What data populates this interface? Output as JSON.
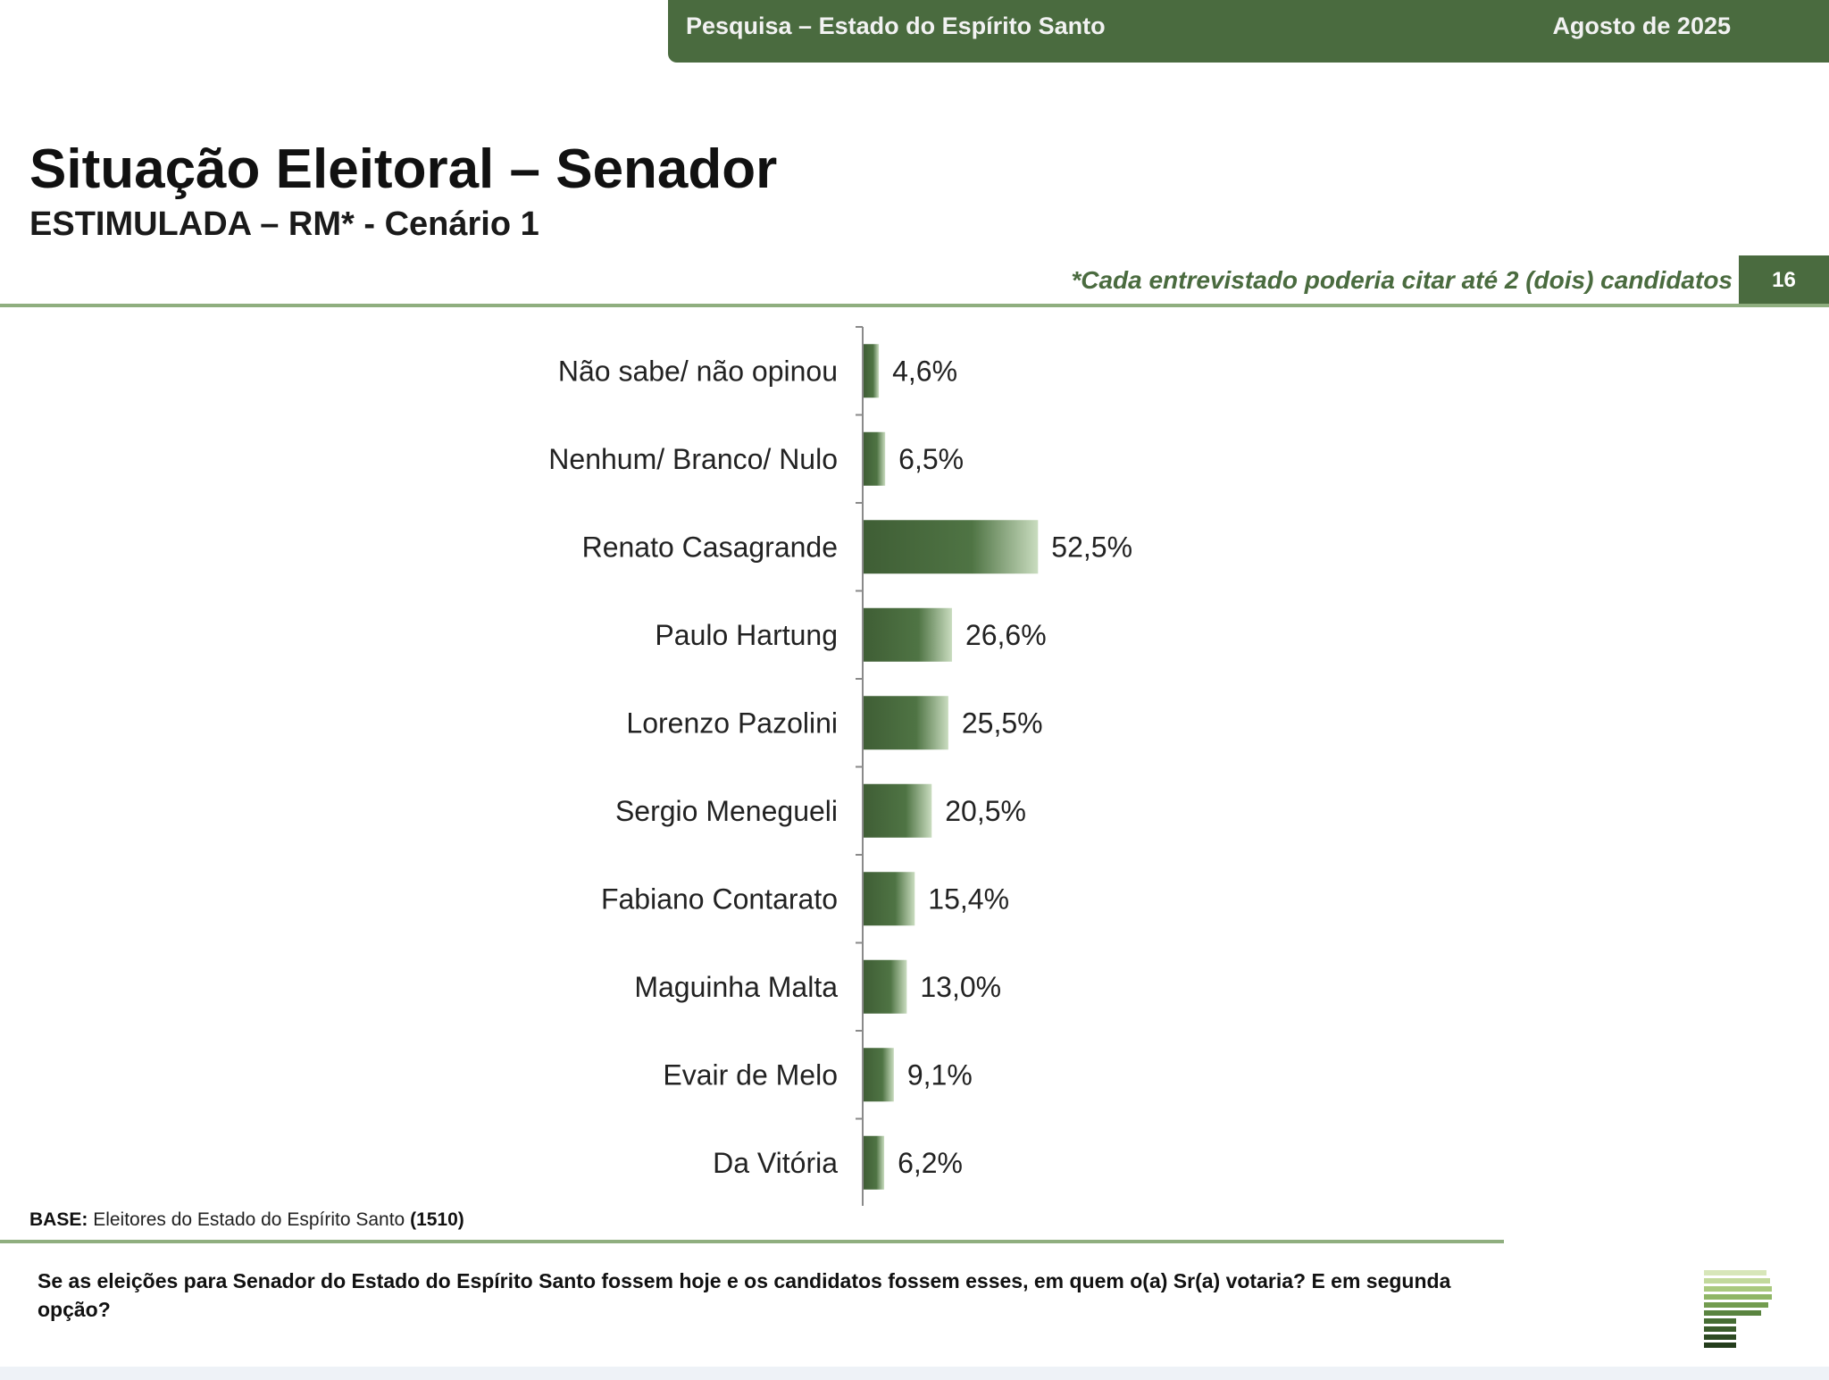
{
  "header": {
    "left": "Pesquisa – Estado do Espírito Santo",
    "right": "Agosto de 2025"
  },
  "title": "Situação Eleitoral – Senador",
  "subtitle": "ESTIMULADA – RM* - Cenário 1",
  "note": "*Cada entrevistado poderia citar até 2 (dois) candidatos",
  "page_number": "16",
  "base": {
    "label": "BASE:",
    "text": "Eleitores do Estado do Espírito Santo",
    "count": "(1510)"
  },
  "question": "Se as eleições para Senador do Estado do Espírito Santo fossem hoje e os candidatos fossem esses, em quem o(a) Sr(a) votaria? E em segunda opção?",
  "colors": {
    "brand_green": "#4a6b3f",
    "bar_dark": "#3f5e35",
    "bar_light": "#c9dcbf",
    "rule": "#8fae7f"
  },
  "logo_icon": "striped-green-p-logo",
  "chart_data": {
    "type": "bar",
    "orientation": "horizontal",
    "unit": "%",
    "grid": false,
    "legend": "none",
    "categories": [
      "Não sabe/ não opinou",
      "Nenhum/ Branco/ Nulo",
      "Renato Casagrande",
      "Paulo Hartung",
      "Lorenzo Pazolini",
      "Sergio Menegueli",
      "Fabiano Contarato",
      "Maguinha Malta",
      "Evair de Melo",
      "Da Vitória"
    ],
    "values": [
      4.6,
      6.5,
      52.5,
      26.6,
      25.5,
      20.5,
      15.4,
      13.0,
      9.1,
      6.2
    ],
    "labels": [
      "4,6%",
      "6,5%",
      "52,5%",
      "26,6%",
      "25,5%",
      "20,5%",
      "15,4%",
      "13,0%",
      "9,1%",
      "6,2%"
    ],
    "xlim": [
      0,
      100
    ]
  }
}
